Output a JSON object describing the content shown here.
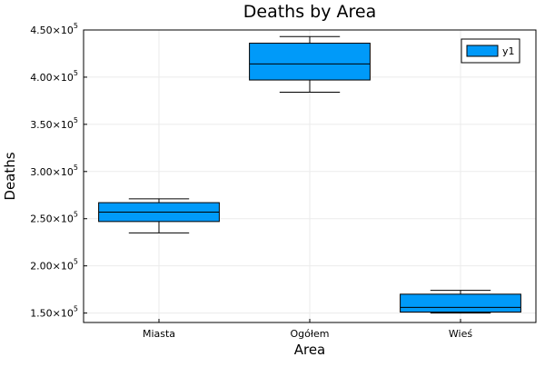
{
  "chart_data": {
    "type": "box",
    "title": "Deaths by Area",
    "xlabel": "Area",
    "ylabel": "Deaths",
    "categories": [
      "Miasta",
      "Ogółem",
      "Wieś"
    ],
    "series": [
      {
        "name": "y1",
        "color": "#009AF9",
        "boxes": [
          {
            "min": 235000,
            "q1": 247000,
            "median": 257000,
            "q3": 267000,
            "max": 271000
          },
          {
            "min": 384000,
            "q1": 397000,
            "median": 414000,
            "q3": 436000,
            "max": 443000
          },
          {
            "min": 150000,
            "q1": 151000,
            "median": 156000,
            "q3": 170000,
            "max": 174000
          }
        ]
      }
    ],
    "ylim": [
      140000,
      450000
    ],
    "yticks": [
      150000,
      200000,
      250000,
      300000,
      350000,
      400000,
      450000
    ],
    "ytick_labels": [
      {
        "mantissa": "1.50×10",
        "exp": "5"
      },
      {
        "mantissa": "2.00×10",
        "exp": "5"
      },
      {
        "mantissa": "2.50×10",
        "exp": "5"
      },
      {
        "mantissa": "3.00×10",
        "exp": "5"
      },
      {
        "mantissa": "3.50×10",
        "exp": "5"
      },
      {
        "mantissa": "4.00×10",
        "exp": "5"
      },
      {
        "mantissa": "4.50×10",
        "exp": "5"
      }
    ],
    "grid": true,
    "legend_position": "top-right"
  }
}
